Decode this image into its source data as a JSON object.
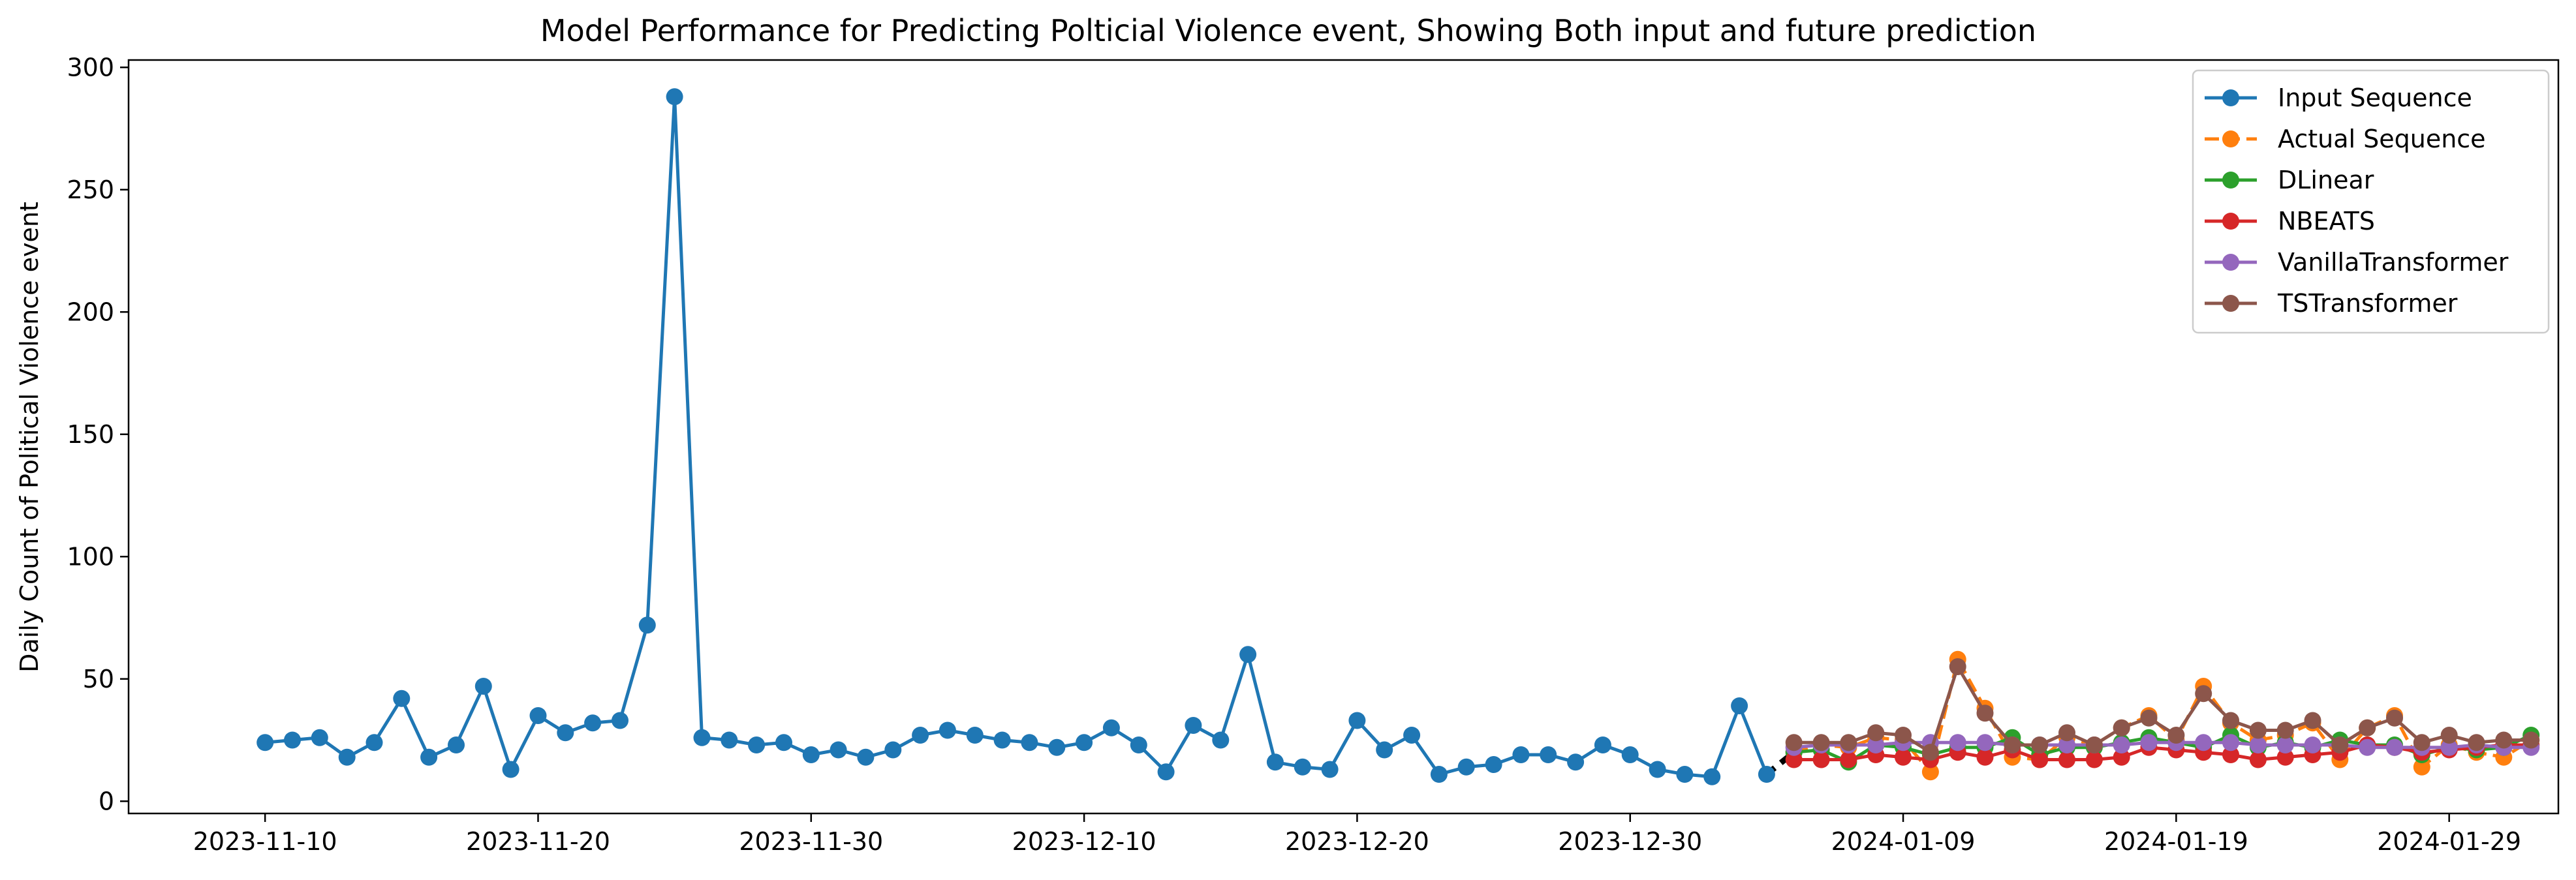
{
  "chart_data": {
    "type": "line",
    "title": "Model Performance for Predicting Polticial Violence event, Showing Both input and future prediction",
    "xlabel": "",
    "ylabel": "Daily Count of Political Violence event",
    "ylim": [
      -5,
      303
    ],
    "xlim": [
      "2023-11-05",
      "2024-02-02"
    ],
    "grid": false,
    "legend_position": "top-right",
    "x_ticks": [
      "2023-11-10",
      "2023-11-20",
      "2023-11-30",
      "2023-12-10",
      "2023-12-20",
      "2023-12-30",
      "2024-01-09",
      "2024-01-19",
      "2024-01-29"
    ],
    "y_ticks": [
      0,
      50,
      100,
      150,
      200,
      250,
      300
    ],
    "series": [
      {
        "name": "Input Sequence",
        "color": "#1f77b4",
        "style": "solid",
        "x_start": "2023-11-10",
        "values": [
          24,
          25,
          26,
          18,
          24,
          42,
          18,
          23,
          47,
          13,
          35,
          28,
          32,
          33,
          72,
          288,
          26,
          25,
          23,
          24,
          19,
          21,
          18,
          21,
          27,
          29,
          27,
          25,
          24,
          22,
          24,
          30,
          23,
          12,
          31,
          25,
          60,
          16,
          14,
          13,
          33,
          21,
          27,
          11,
          14,
          15,
          19,
          19,
          16,
          23,
          19,
          13,
          11,
          10,
          39,
          11
        ]
      },
      {
        "name": "Actual Sequence",
        "color": "#ff7f0e",
        "style": "dashed",
        "x_start": "2024-01-05",
        "values": [
          20,
          23,
          22,
          26,
          25,
          12,
          58,
          38,
          18,
          17,
          26,
          23,
          30,
          35,
          25,
          47,
          32,
          25,
          27,
          32,
          17,
          30,
          35,
          14,
          23,
          20,
          18,
          25
        ]
      },
      {
        "name": "DLinear",
        "color": "#2ca02c",
        "style": "solid",
        "x_start": "2024-01-05",
        "values": [
          20,
          21,
          16,
          23,
          22,
          19,
          22,
          22,
          26,
          19,
          22,
          22,
          24,
          26,
          24,
          22,
          27,
          22,
          24,
          22,
          25,
          23,
          23,
          19,
          22,
          21,
          22,
          27
        ]
      },
      {
        "name": "NBEATS",
        "color": "#d62728",
        "style": "solid",
        "x_start": "2024-01-05",
        "values": [
          17,
          17,
          17,
          19,
          18,
          17,
          20,
          18,
          21,
          17,
          17,
          17,
          18,
          22,
          21,
          20,
          19,
          17,
          18,
          19,
          20,
          23,
          22,
          20,
          21,
          22,
          23,
          23
        ]
      },
      {
        "name": "VanillaTransformer",
        "color": "#9467bd",
        "style": "solid",
        "x_start": "2024-01-05",
        "values": [
          22,
          23,
          23,
          23,
          24,
          24,
          24,
          24,
          23,
          23,
          23,
          23,
          23,
          24,
          24,
          24,
          24,
          23,
          23,
          23,
          23,
          22,
          22,
          22,
          22,
          23,
          22,
          22
        ]
      },
      {
        "name": "TSTransformer",
        "color": "#8c564b",
        "style": "solid",
        "x_start": "2024-01-05",
        "values": [
          24,
          24,
          24,
          28,
          27,
          20,
          55,
          36,
          23,
          23,
          28,
          23,
          30,
          34,
          27,
          44,
          33,
          29,
          29,
          33,
          23,
          30,
          34,
          24,
          27,
          24,
          25,
          25
        ]
      }
    ]
  }
}
